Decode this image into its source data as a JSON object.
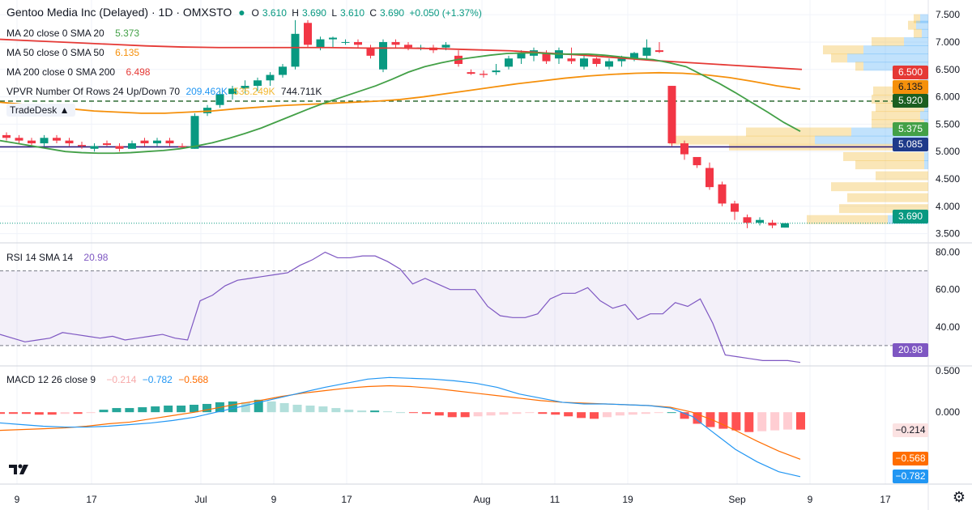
{
  "header": {
    "title": "Gentoo Media Inc (Delayed) · 1D · OMXSTO",
    "open_label": "O",
    "open": "3.610",
    "high_label": "H",
    "high": "3.690",
    "low_label": "L",
    "low": "3.610",
    "close_label": "C",
    "close": "3.690",
    "change": "+0.050 (+1.37%)"
  },
  "indicators": {
    "ma20": {
      "label": "MA 20 close 0 SMA 20",
      "value": "5.373",
      "color": "#43a047"
    },
    "ma50": {
      "label": "MA 50 close 0 SMA 50",
      "value": "6.135",
      "color": "#f5900b"
    },
    "ma200": {
      "label": "MA 200 close 0 SMA 200",
      "value": "6.498",
      "color": "#e53935"
    },
    "vpvr": {
      "label": "VPVR Number Of Rows 24 Up/Down 70",
      "up": "209.462K",
      "down": "535.249K",
      "total": "744.711K"
    },
    "rsi": {
      "label": "RSI 14 SMA 14",
      "value": "20.98",
      "color": "#7e57c2"
    },
    "macd": {
      "label": "MACD 12 26 close 9",
      "hist": "−0.214",
      "macd": "−0.782",
      "signal": "−0.568"
    }
  },
  "price_labels": {
    "ma200": "6.500",
    "ma50": "6.135",
    "dashed": "5.920",
    "ma20": "5.375",
    "hline": "5.085",
    "last": "3.690",
    "ma200_color": "#e53935",
    "ma50_color": "#f5900b",
    "dashed_color": "#1b5e20",
    "ma20_color": "#43a047",
    "hline_color": "#1e3a8a",
    "last_color": "#089981"
  },
  "watermark": "TradeDesk ▲",
  "rsi_label": "20.98",
  "macd_labels": {
    "hist": "−0.214",
    "signal": "−0.568",
    "macd": "−0.782"
  },
  "chart_data": [
    {
      "type": "candlestick",
      "title": "Gentoo Media Inc (Delayed) · 1D · OMXSTO",
      "x_ticks": [
        "9",
        "17",
        "Jul",
        "9",
        "17",
        "Aug",
        "11",
        "19",
        "Sep",
        "9",
        "17"
      ],
      "y_ticks": [
        3.5,
        4.0,
        4.5,
        5.0,
        5.5,
        6.0,
        6.5,
        7.0,
        7.5
      ],
      "ylim": [
        3.45,
        7.65
      ],
      "ohlc": [
        [
          5.3,
          5.35,
          5.2,
          5.25
        ],
        [
          5.25,
          5.3,
          5.15,
          5.2
        ],
        [
          5.2,
          5.25,
          5.1,
          5.15
        ],
        [
          5.15,
          5.3,
          5.1,
          5.25
        ],
        [
          5.25,
          5.3,
          5.15,
          5.2
        ],
        [
          5.2,
          5.25,
          5.1,
          5.15
        ],
        [
          5.12,
          5.18,
          5.05,
          5.1
        ],
        [
          5.05,
          5.15,
          5.0,
          5.1
        ],
        [
          5.15,
          5.2,
          5.1,
          5.12
        ],
        [
          5.1,
          5.15,
          5.0,
          5.05
        ],
        [
          5.05,
          5.2,
          5.05,
          5.15
        ],
        [
          5.2,
          5.25,
          5.1,
          5.15
        ],
        [
          5.15,
          5.25,
          5.1,
          5.2
        ],
        [
          5.2,
          5.25,
          5.1,
          5.15
        ],
        [
          5.1,
          5.15,
          5.05,
          5.08
        ],
        [
          5.05,
          5.7,
          5.05,
          5.65
        ],
        [
          5.7,
          5.85,
          5.65,
          5.8
        ],
        [
          5.85,
          6.1,
          5.8,
          6.05
        ],
        [
          6.05,
          6.2,
          5.95,
          6.15
        ],
        [
          6.15,
          6.3,
          6.05,
          6.2
        ],
        [
          6.2,
          6.35,
          6.1,
          6.3
        ],
        [
          6.3,
          6.45,
          6.2,
          6.4
        ],
        [
          6.4,
          6.6,
          6.35,
          6.55
        ],
        [
          6.55,
          7.4,
          6.5,
          7.15
        ],
        [
          7.35,
          7.4,
          6.9,
          6.95
        ],
        [
          6.9,
          7.1,
          6.85,
          7.05
        ],
        [
          7.05,
          7.1,
          6.9,
          7.08
        ],
        [
          7.0,
          7.05,
          6.95,
          7.0
        ],
        [
          7.0,
          7.05,
          6.9,
          6.95
        ],
        [
          6.9,
          6.95,
          6.7,
          6.75
        ],
        [
          6.5,
          7.05,
          6.45,
          7.0
        ],
        [
          7.0,
          7.05,
          6.9,
          6.95
        ],
        [
          6.95,
          7.0,
          6.85,
          6.9
        ],
        [
          6.9,
          6.95,
          6.85,
          6.9
        ],
        [
          6.9,
          6.95,
          6.8,
          6.85
        ],
        [
          6.9,
          7.0,
          6.85,
          6.95
        ],
        [
          6.75,
          6.85,
          6.55,
          6.6
        ],
        [
          6.45,
          6.5,
          6.4,
          6.42
        ],
        [
          6.42,
          6.48,
          6.35,
          6.4
        ],
        [
          6.45,
          6.6,
          6.4,
          6.48
        ],
        [
          6.55,
          6.75,
          6.5,
          6.7
        ],
        [
          6.7,
          6.85,
          6.6,
          6.8
        ],
        [
          6.75,
          6.9,
          6.65,
          6.85
        ],
        [
          6.8,
          6.85,
          6.6,
          6.65
        ],
        [
          6.7,
          6.9,
          6.6,
          6.85
        ],
        [
          6.7,
          6.9,
          6.6,
          6.65
        ],
        [
          6.55,
          6.75,
          6.5,
          6.7
        ],
        [
          6.7,
          6.72,
          6.55,
          6.6
        ],
        [
          6.55,
          6.7,
          6.5,
          6.65
        ],
        [
          6.65,
          6.75,
          6.55,
          6.7
        ],
        [
          6.7,
          6.82,
          6.65,
          6.8
        ],
        [
          6.75,
          7.05,
          6.7,
          6.9
        ],
        [
          6.85,
          7.0,
          6.8,
          6.82
        ],
        [
          6.2,
          6.2,
          5.1,
          5.15
        ],
        [
          5.15,
          5.2,
          4.85,
          4.95
        ],
        [
          4.9,
          4.9,
          4.7,
          4.75
        ],
        [
          4.7,
          4.8,
          4.3,
          4.35
        ],
        [
          4.4,
          4.45,
          4.0,
          4.05
        ],
        [
          4.05,
          4.1,
          3.75,
          3.9
        ],
        [
          3.8,
          3.85,
          3.6,
          3.7
        ],
        [
          3.7,
          3.8,
          3.65,
          3.75
        ],
        [
          3.7,
          3.75,
          3.6,
          3.65
        ],
        [
          3.61,
          3.69,
          3.61,
          3.69
        ]
      ],
      "sma20": [
        5.2,
        5.15,
        5.1,
        5.05,
        5.0,
        4.98,
        4.97,
        4.97,
        4.98,
        5.0,
        5.02,
        5.05,
        5.1,
        5.16,
        5.24,
        5.33,
        5.43,
        5.55,
        5.67,
        5.79,
        5.9,
        6.0,
        6.1,
        6.2,
        6.32,
        6.45,
        6.55,
        6.62,
        6.68,
        6.72,
        6.76,
        6.79,
        6.8,
        6.8,
        6.78,
        6.78,
        6.78,
        6.76,
        6.73,
        6.7,
        6.68,
        6.62,
        6.55,
        6.4,
        6.25,
        6.08,
        5.9,
        5.72,
        5.53,
        5.37
      ],
      "sma50": [
        5.9,
        5.86,
        5.82,
        5.78,
        5.74,
        5.72,
        5.7,
        5.7,
        5.72,
        5.74,
        5.78,
        5.81,
        5.84,
        5.86,
        5.88,
        5.9,
        5.92,
        5.95,
        6.0,
        6.06,
        6.12,
        6.18,
        6.24,
        6.29,
        6.34,
        6.38,
        6.41,
        6.43,
        6.44,
        6.43,
        6.4,
        6.35,
        6.28,
        6.2,
        6.14
      ],
      "sma200": [
        7.05,
        7.02,
        6.99,
        6.96,
        6.93,
        6.91,
        6.9,
        6.9,
        6.9,
        6.9,
        6.89,
        6.89,
        6.88,
        6.86,
        6.84,
        6.8,
        6.76,
        6.71,
        6.66,
        6.62,
        6.58,
        6.54,
        6.5
      ],
      "rsi": {
        "ylim": [
          20,
          85
        ],
        "y_ticks": [
          40.0,
          60.0,
          80.0
        ],
        "upper": 70,
        "lower": 30,
        "values": [
          36,
          34,
          32,
          33,
          34,
          37,
          36,
          35,
          34,
          35,
          33,
          34,
          35,
          36,
          34,
          33,
          54,
          57,
          62,
          65,
          66,
          67,
          68,
          69,
          73,
          76,
          80,
          77,
          77,
          78,
          78,
          75,
          71,
          63,
          66,
          63,
          60,
          60,
          60,
          51,
          46,
          45,
          45,
          47,
          55,
          58,
          58,
          61,
          54,
          50,
          52,
          44,
          47,
          47,
          53,
          51,
          55,
          42,
          25,
          24,
          23,
          22,
          22,
          22,
          21
        ]
      },
      "macd": {
        "ylim": [
          -0.87,
          0.56
        ],
        "y_ticks": [
          0.5,
          0.0
        ],
        "macd": [
          -0.13,
          -0.15,
          -0.17,
          -0.18,
          -0.18,
          -0.17,
          -0.15,
          -0.13,
          -0.1,
          -0.06,
          0.0,
          0.06,
          0.12,
          0.18,
          0.24,
          0.3,
          0.35,
          0.4,
          0.42,
          0.41,
          0.4,
          0.38,
          0.35,
          0.3,
          0.22,
          0.17,
          0.12,
          0.1,
          0.1,
          0.09,
          0.08,
          0.05,
          -0.05,
          -0.25,
          -0.45,
          -0.6,
          -0.72,
          -0.78
        ],
        "signal": [
          -0.22,
          -0.21,
          -0.2,
          -0.19,
          -0.17,
          -0.14,
          -0.12,
          -0.08,
          -0.04,
          0.0,
          0.05,
          0.1,
          0.14,
          0.19,
          0.23,
          0.26,
          0.29,
          0.31,
          0.32,
          0.31,
          0.29,
          0.26,
          0.23,
          0.2,
          0.17,
          0.14,
          0.12,
          0.11,
          0.1,
          0.09,
          0.08,
          0.06,
          0.0,
          -0.1,
          -0.22,
          -0.35,
          -0.47,
          -0.57
        ],
        "hist": [
          -0.02,
          -0.02,
          -0.02,
          -0.03,
          -0.03,
          -0.02,
          -0.02,
          -0.01,
          0.03,
          0.05,
          0.05,
          0.06,
          0.07,
          0.08,
          0.08,
          0.09,
          0.1,
          0.12,
          0.13,
          0.12,
          0.15,
          0.13,
          0.11,
          0.09,
          0.08,
          0.07,
          0.05,
          0.03,
          0.02,
          0.02,
          0.01,
          0.0,
          -0.01,
          -0.02,
          -0.04,
          -0.06,
          -0.06,
          -0.05,
          -0.04,
          -0.03,
          -0.02,
          -0.01,
          -0.02,
          -0.03,
          -0.05,
          -0.07,
          -0.08,
          -0.06,
          -0.04,
          -0.03,
          -0.02,
          -0.01,
          0.0,
          -0.08,
          -0.14,
          -0.18,
          -0.2,
          -0.22,
          -0.24,
          -0.23,
          -0.22,
          -0.21,
          -0.21
        ]
      }
    }
  ]
}
